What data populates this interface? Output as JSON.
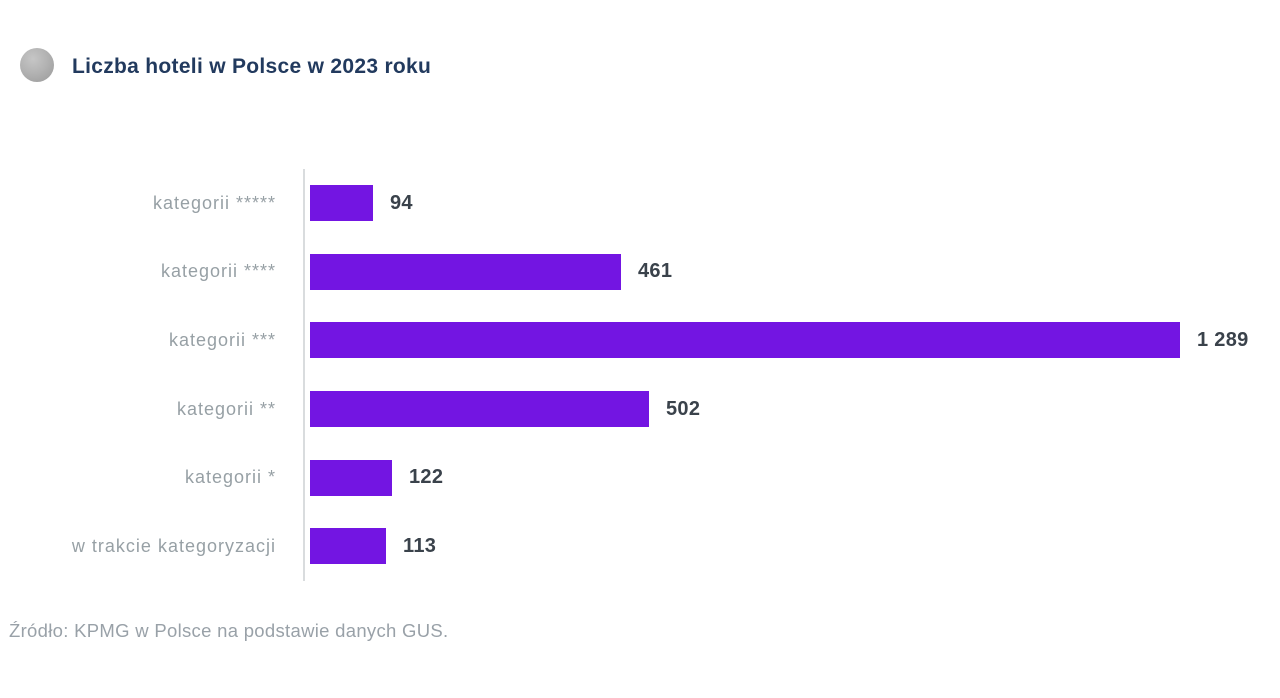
{
  "header": {
    "title": "Liczba hoteli w Polsce w 2023 roku",
    "icon": "gray-globe-circle"
  },
  "chart_data": {
    "type": "bar",
    "orientation": "horizontal",
    "title": "Liczba hoteli w Polsce w 2023 roku",
    "categories": [
      "kategorii *****",
      "kategorii ****",
      "kategorii ***",
      "kategorii **",
      "kategorii *",
      "w trakcie kategoryzacji"
    ],
    "values": [
      94,
      461,
      1289,
      502,
      122,
      113
    ],
    "value_labels": [
      "94",
      "461",
      "1 289",
      "502",
      "122",
      "113"
    ],
    "xlim": [
      0,
      1289
    ],
    "grid": false,
    "legend": false,
    "bar_color": "#7315E2"
  },
  "footer": {
    "source": "Źródło: KPMG w Polsce na podstawie danych GUS."
  },
  "colors": {
    "title": "#223A5E",
    "bar": "#7315E2",
    "category_label": "#97A0A5",
    "value_label": "#3A424B",
    "axis_line": "#D9DCDE",
    "source_text": "#99A1A8",
    "background": "#FFFFFF"
  }
}
